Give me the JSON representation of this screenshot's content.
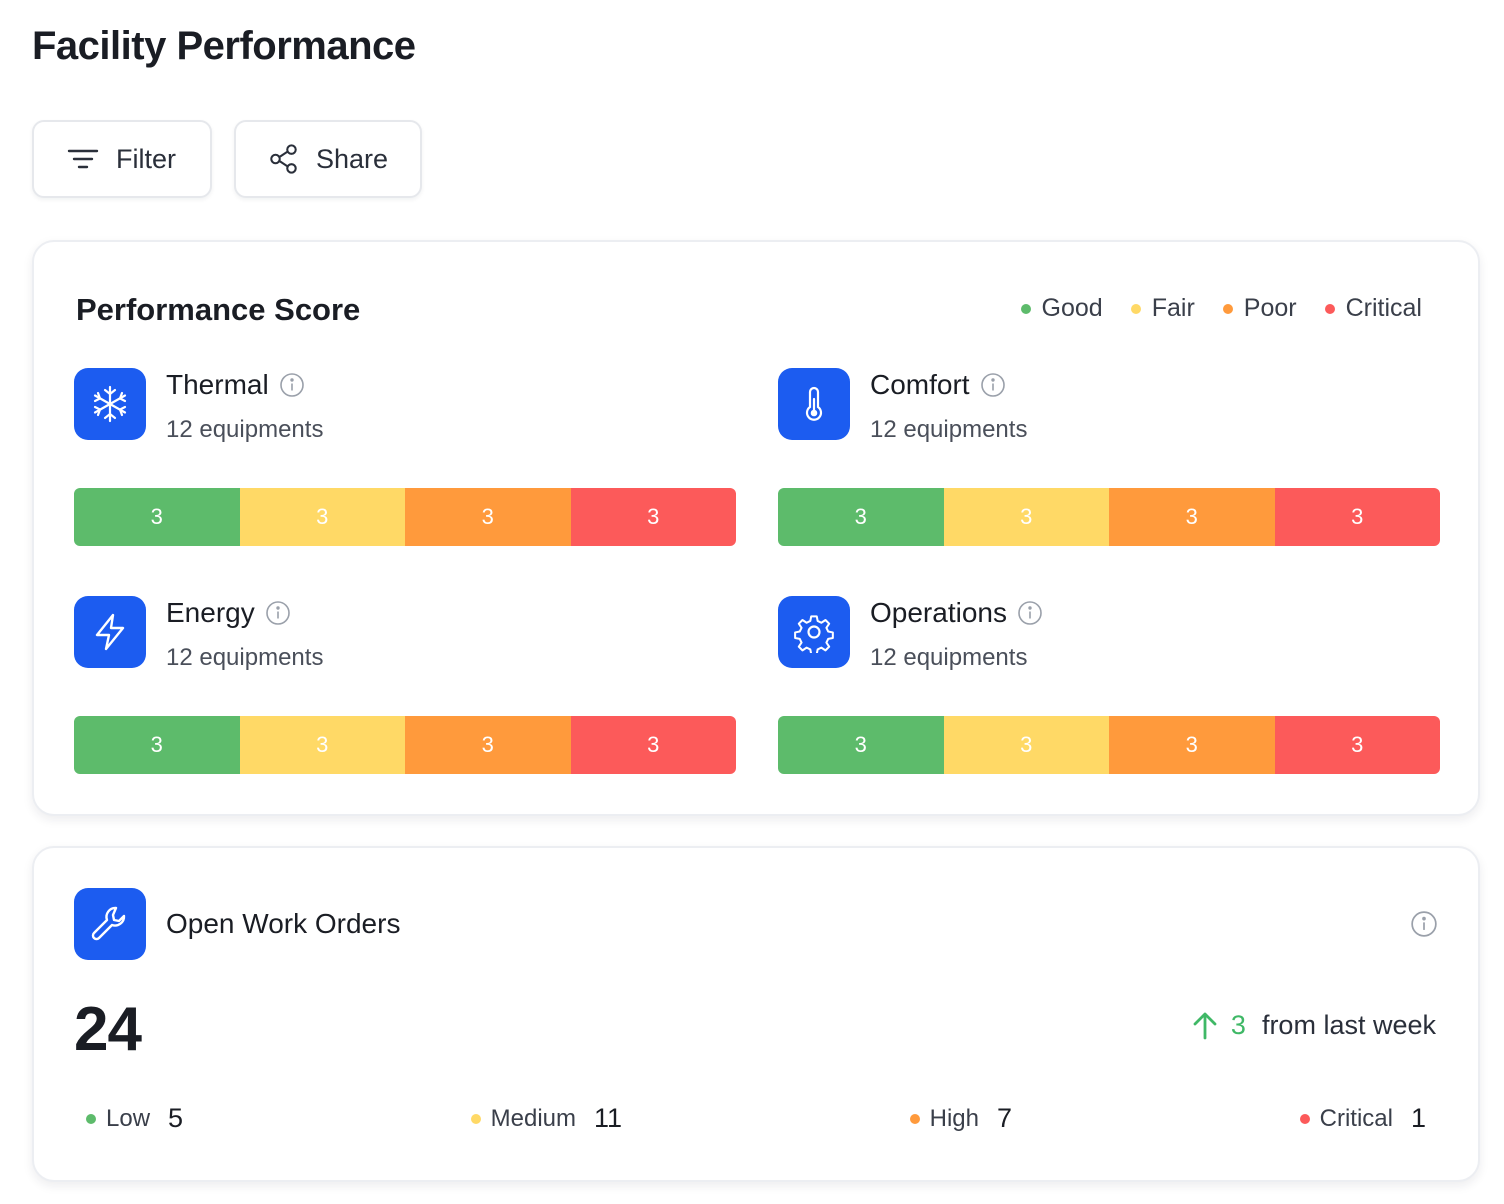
{
  "page": {
    "title": "Facility Performance"
  },
  "toolbar": {
    "filter_label": "Filter",
    "share_label": "Share"
  },
  "colors": {
    "good": "#5dbb6b",
    "fair": "#ffd966",
    "poor": "#ff9a3c",
    "critical": "#fc5a5a",
    "accent": "#1c5cf0"
  },
  "performance": {
    "title": "Performance Score",
    "legend": [
      {
        "label": "Good",
        "color": "#5dbb6b"
      },
      {
        "label": "Fair",
        "color": "#ffd966"
      },
      {
        "label": "Poor",
        "color": "#ff9a3c"
      },
      {
        "label": "Critical",
        "color": "#fc5a5a"
      }
    ],
    "metrics": [
      {
        "name": "Thermal",
        "icon": "snowflake-icon",
        "subtitle": "12 equipments",
        "segments": [
          "3",
          "3",
          "3",
          "3"
        ]
      },
      {
        "name": "Comfort",
        "icon": "thermometer-icon",
        "subtitle": "12 equipments",
        "segments": [
          "3",
          "3",
          "3",
          "3"
        ]
      },
      {
        "name": "Energy",
        "icon": "lightning-icon",
        "subtitle": "12 equipments",
        "segments": [
          "3",
          "3",
          "3",
          "3"
        ]
      },
      {
        "name": "Operations",
        "icon": "gear-icon",
        "subtitle": "12 equipments",
        "segments": [
          "3",
          "3",
          "3",
          "3"
        ]
      }
    ]
  },
  "work_orders": {
    "title": "Open Work Orders",
    "icon": "wrench-icon",
    "count": "24",
    "change": {
      "delta": "3",
      "label": "from last week",
      "direction": "up"
    },
    "levels": [
      {
        "label": "Low",
        "value": "5",
        "color": "#5dbb6b"
      },
      {
        "label": "Medium",
        "value": "11",
        "color": "#ffd966"
      },
      {
        "label": "High",
        "value": "7",
        "color": "#ff9a3c"
      },
      {
        "label": "Critical",
        "value": "1",
        "color": "#fc5a5a"
      }
    ]
  }
}
